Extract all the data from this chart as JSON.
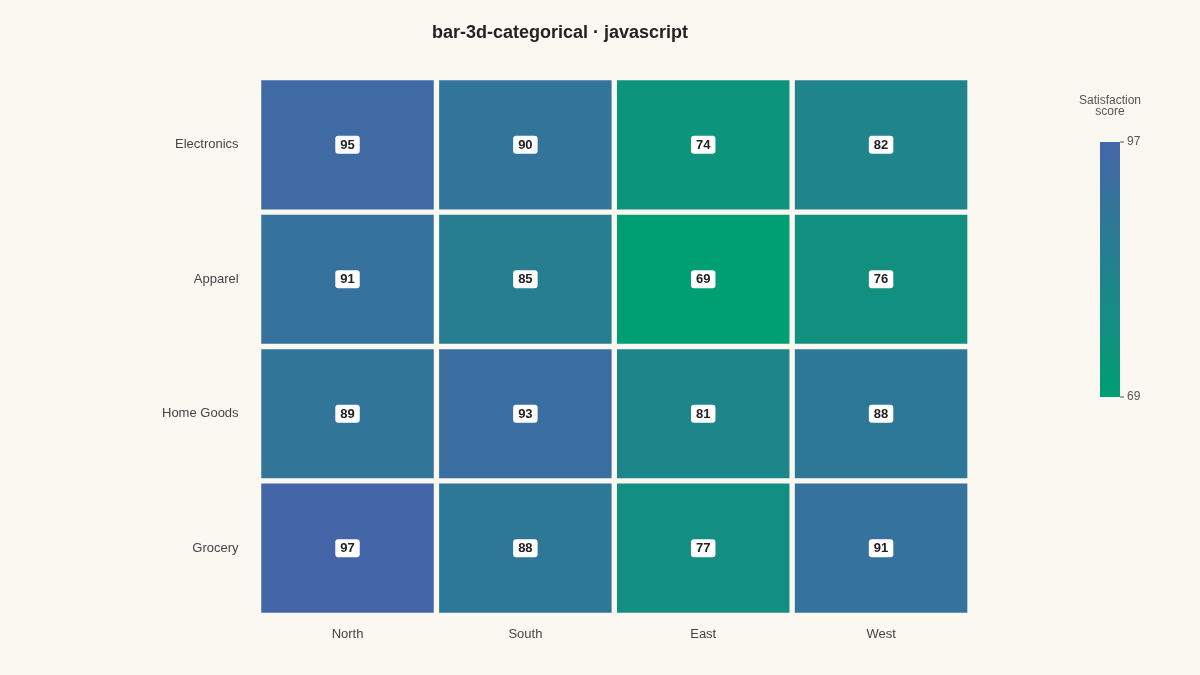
{
  "chart_data": {
    "type": "heatmap",
    "title": "bar-3d-categorical · javascript",
    "categories": [
      "North",
      "South",
      "East",
      "West"
    ],
    "y_categories": [
      "Electronics",
      "Apparel",
      "Home Goods",
      "Grocery"
    ],
    "cells": [
      [
        95,
        90,
        74,
        82
      ],
      [
        91,
        85,
        69,
        76
      ],
      [
        89,
        93,
        81,
        88
      ],
      [
        97,
        88,
        77,
        91
      ]
    ],
    "data_labels": true,
    "clim": [
      69,
      97
    ],
    "cticks": [
      69,
      97
    ],
    "clabel": "Satisfaction score"
  }
}
